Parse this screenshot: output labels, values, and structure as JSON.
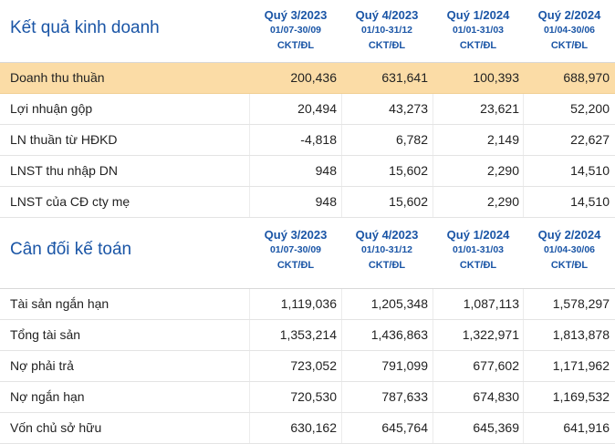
{
  "income": {
    "title": "Kết quả kinh doanh",
    "columns": [
      {
        "quarter": "Quý 3/2023",
        "dates": "01/07-30/09",
        "unit": "CKT/ĐL"
      },
      {
        "quarter": "Quý 4/2023",
        "dates": "01/10-31/12",
        "unit": "CKT/ĐL"
      },
      {
        "quarter": "Quý 1/2024",
        "dates": "01/01-31/03",
        "unit": "CKT/ĐL"
      },
      {
        "quarter": "Quý 2/2024",
        "dates": "01/04-30/06",
        "unit": "CKT/ĐL"
      }
    ],
    "rows": [
      {
        "label": "Doanh thu thuần",
        "values": [
          "200,436",
          "631,641",
          "100,393",
          "688,970"
        ]
      },
      {
        "label": "Lợi nhuận gộp",
        "values": [
          "20,494",
          "43,273",
          "23,621",
          "52,200"
        ]
      },
      {
        "label": "LN thuần từ HĐKD",
        "values": [
          "-4,818",
          "6,782",
          "2,149",
          "22,627"
        ]
      },
      {
        "label": "LNST thu nhập DN",
        "values": [
          "948",
          "15,602",
          "2,290",
          "14,510"
        ]
      },
      {
        "label": "LNST của CĐ cty mẹ",
        "values": [
          "948",
          "15,602",
          "2,290",
          "14,510"
        ]
      }
    ]
  },
  "balance": {
    "title": "Cân đối kế toán",
    "columns": [
      {
        "quarter": "Quý 3/2023",
        "dates": "01/07-30/09",
        "unit": "CKT/ĐL"
      },
      {
        "quarter": "Quý 4/2023",
        "dates": "01/10-31/12",
        "unit": "CKT/ĐL"
      },
      {
        "quarter": "Quý 1/2024",
        "dates": "01/01-31/03",
        "unit": "CKT/ĐL"
      },
      {
        "quarter": "Quý 2/2024",
        "dates": "01/04-30/06",
        "unit": "CKT/ĐL"
      }
    ],
    "rows": [
      {
        "label": "Tài sản ngắn hạn",
        "values": [
          "1,119,036",
          "1,205,348",
          "1,087,113",
          "1,578,297"
        ]
      },
      {
        "label": "Tổng tài sản",
        "values": [
          "1,353,214",
          "1,436,863",
          "1,322,971",
          "1,813,878"
        ]
      },
      {
        "label": "Nợ phải trả",
        "values": [
          "723,052",
          "791,099",
          "677,602",
          "1,171,962"
        ]
      },
      {
        "label": "Nợ ngắn hạn",
        "values": [
          "720,530",
          "787,633",
          "674,830",
          "1,169,532"
        ]
      },
      {
        "label": "Vốn chủ sở hữu",
        "values": [
          "630,162",
          "645,764",
          "645,369",
          "641,916"
        ]
      }
    ]
  },
  "colors": {
    "accent": "#1a55a6",
    "highlight_row": "#fbdca6"
  }
}
